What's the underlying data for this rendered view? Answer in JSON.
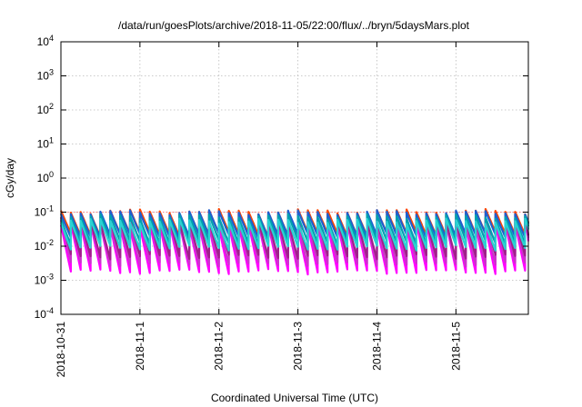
{
  "chart_data": {
    "type": "line",
    "title": "/data/run/goesPlots/archive/2018-11-05/22:00/flux/../bryn/5daysMars.plot",
    "xlabel": "Coordinated Universal Time (UTC)",
    "ylabel": "cGy/day",
    "y_scale": "log",
    "ylim": [
      0.0001,
      10000
    ],
    "y_ticks": [
      {
        "value": 0.0001,
        "base": "10",
        "exp": "-4"
      },
      {
        "value": 0.001,
        "base": "10",
        "exp": "-3"
      },
      {
        "value": 0.01,
        "base": "10",
        "exp": "-2"
      },
      {
        "value": 0.1,
        "base": "10",
        "exp": "-1"
      },
      {
        "value": 1,
        "base": "10",
        "exp": "0"
      },
      {
        "value": 10,
        "base": "10",
        "exp": "1"
      },
      {
        "value": 100,
        "base": "10",
        "exp": "2"
      },
      {
        "value": 1000,
        "base": "10",
        "exp": "3"
      },
      {
        "value": 10000,
        "base": "10",
        "exp": "4"
      }
    ],
    "x_range": [
      "2018-10-31T00:00",
      "2018-11-05T22:00"
    ],
    "x_ticks": [
      "2018-10-31",
      "2018-11-1",
      "2018-11-2",
      "2018-11-3",
      "2018-11-4",
      "2018-11-5"
    ],
    "grid": true,
    "reference_line": {
      "value": 0.1,
      "color": "#ff8080"
    },
    "pulse_period_hours": 3,
    "series": [
      {
        "color": "#ff00ff",
        "peak": 0.042,
        "trough": 0.0018
      },
      {
        "color": "#cc33cc",
        "peak": 0.05,
        "trough": 0.003
      },
      {
        "color": "#a0208a",
        "peak": 0.06,
        "trough": 0.005
      },
      {
        "color": "#ff4500",
        "peak": 0.105,
        "trough": 0.022
      },
      {
        "color": "#1f5fd0",
        "peak": 0.098,
        "trough": 0.02
      },
      {
        "color": "#00a0b0",
        "peak": 0.075,
        "trough": 0.013
      },
      {
        "color": "#2ad2d2",
        "peak": 0.055,
        "trough": 0.009
      }
    ]
  }
}
